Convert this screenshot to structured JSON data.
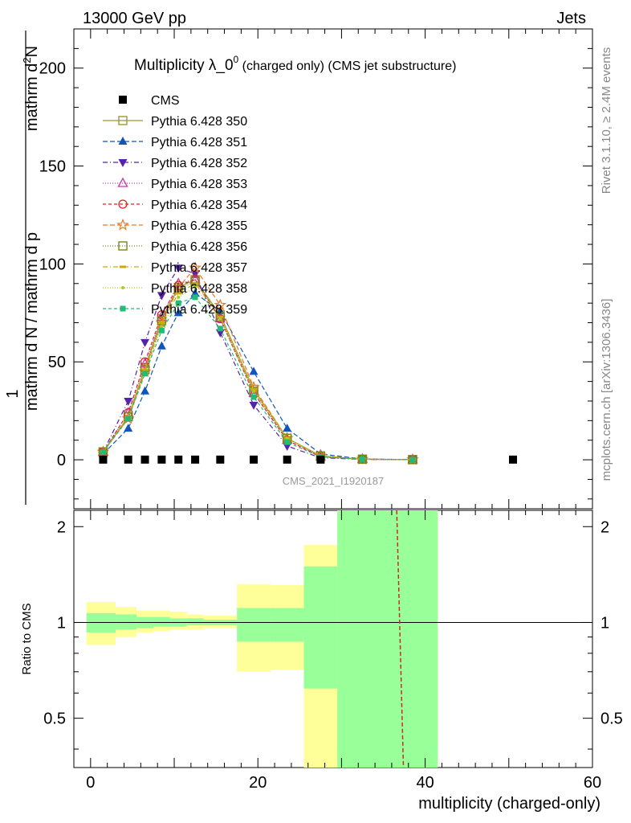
{
  "header": {
    "left": "13000 GeV pp",
    "right": "Jets",
    "side_rivet": "Rivet 3.1.10, ≥ 2.4M events",
    "side_site": "mcplots.cern.ch [arXiv:1306.3436]",
    "watermark": "CMS_2021_I1920187"
  },
  "main": {
    "title_main": "Multiplicity λ_0",
    "title_sup": "0",
    "title_tail": " (charged only) (CMS jet substructure)",
    "ylabel_one": "1",
    "ylabel_den": "mathrm d N / mathrm d p",
    "ylabel_num": "mathrm d",
    "ylabel_num_sup": "2",
    "ylabel_num_tail": "N"
  },
  "ratio": {
    "ylabel": "Ratio to CMS",
    "xlabel": "multiplicity (charged-only)"
  },
  "chart_data": {
    "type": "line",
    "xlim": [
      -2,
      60
    ],
    "ylim": [
      -25,
      220
    ],
    "ratio_ylim": [
      0.35,
      2.25
    ],
    "x_ticks": [
      0,
      20,
      40,
      60
    ],
    "y_ticks": [
      0,
      50,
      100,
      150,
      200
    ],
    "ratio_ticks": [
      0.5,
      1,
      2
    ],
    "x_tick_labels": [
      "0",
      "20",
      "40",
      "60"
    ],
    "y_tick_labels": [
      "0",
      "50",
      "100",
      "150",
      "200"
    ],
    "ratio_tick_labels": [
      "0.5",
      "1",
      "2"
    ],
    "cms": {
      "name": "CMS",
      "x": [
        1.5,
        4.5,
        6.5,
        8.5,
        10.5,
        12.5,
        15.5,
        19.5,
        23.5,
        27.5,
        50.5
      ],
      "y": [
        0.1,
        0.1,
        0.1,
        0.1,
        0.1,
        0.1,
        0.1,
        0.1,
        0.1,
        0.1,
        0.1
      ]
    },
    "x": [
      1.5,
      4.5,
      6.5,
      8.5,
      10.5,
      12.5,
      15.5,
      19.5,
      23.5,
      27.5,
      32.5,
      38.5
    ],
    "series": [
      {
        "name": "Pythia 6.428 350",
        "color": "#999933",
        "dash": "",
        "marker": "square-open",
        "values": [
          4,
          22,
          47,
          72,
          88,
          92,
          74,
          36,
          11,
          2,
          0.3,
          0.1
        ]
      },
      {
        "name": "Pythia 6.428 351",
        "color": "#1155bb",
        "dash": "6,3",
        "marker": "triangle-up",
        "values": [
          3,
          16,
          35,
          58,
          75,
          85,
          76,
          45,
          16,
          3,
          0.4,
          0.1
        ]
      },
      {
        "name": "Pythia 6.428 352",
        "color": "#5522aa",
        "dash": "6,3,1,3",
        "marker": "triangle-down",
        "values": [
          4,
          30,
          60,
          84,
          98,
          95,
          65,
          28,
          7,
          1,
          0.2,
          0.1
        ]
      },
      {
        "name": "Pythia 6.428 353",
        "color": "#cc33aa",
        "dash": "1,2",
        "marker": "triangle-open",
        "values": [
          4,
          24,
          49,
          73,
          90,
          92,
          72,
          34,
          10,
          1.5,
          0.3,
          0.1
        ]
      },
      {
        "name": "Pythia 6.428 354",
        "color": "#dd2222",
        "dash": "4,3",
        "marker": "circle-open",
        "values": [
          4,
          24,
          50,
          74,
          89,
          92,
          72,
          34,
          10,
          1.5,
          0.3,
          0.1
        ]
      },
      {
        "name": "Pythia 6.428 355",
        "color": "#ee7722",
        "dash": "6,3",
        "marker": "star-open",
        "values": [
          4,
          21,
          45,
          70,
          88,
          98,
          79,
          37,
          11,
          2,
          0.3,
          0.1
        ]
      },
      {
        "name": "Pythia 6.428 356",
        "color": "#778811",
        "dash": "1,2",
        "marker": "square-open",
        "values": [
          4,
          22,
          46,
          71,
          87,
          91,
          73,
          35,
          11,
          1.8,
          0.3,
          0.1
        ]
      },
      {
        "name": "Pythia 6.428 357",
        "color": "#ccaa11",
        "dash": "6,3,1,3",
        "marker": "dash",
        "values": [
          4,
          22,
          46,
          70,
          85,
          90,
          73,
          36,
          11,
          2,
          0.3,
          0.1
        ]
      },
      {
        "name": "Pythia 6.428 358",
        "color": "#aacc22",
        "dash": "1,2",
        "marker": "dot",
        "values": [
          4,
          21,
          44,
          68,
          83,
          88,
          72,
          35,
          11,
          2,
          0.3,
          0.1
        ]
      },
      {
        "name": "Pythia 6.428 359",
        "color": "#22bb77",
        "dash": "4,3",
        "marker": "square-filled",
        "values": [
          4,
          21,
          44,
          66,
          80,
          83,
          67,
          32,
          9,
          1.5,
          0.3,
          0.1
        ]
      }
    ],
    "ratio_band_inner": [
      {
        "x0": -0.5,
        "x1": 3.0,
        "lo": 0.93,
        "hi": 1.07
      },
      {
        "x0": 3.0,
        "x1": 5.5,
        "lo": 0.95,
        "hi": 1.06
      },
      {
        "x0": 5.5,
        "x1": 7.5,
        "lo": 0.96,
        "hi": 1.04
      },
      {
        "x0": 7.5,
        "x1": 9.5,
        "lo": 0.97,
        "hi": 1.04
      },
      {
        "x0": 9.5,
        "x1": 11.5,
        "lo": 0.97,
        "hi": 1.03
      },
      {
        "x0": 11.5,
        "x1": 13.5,
        "lo": 0.98,
        "hi": 1.03
      },
      {
        "x0": 13.5,
        "x1": 17.5,
        "lo": 0.98,
        "hi": 1.02
      },
      {
        "x0": 17.5,
        "x1": 21.5,
        "lo": 0.87,
        "hi": 1.11
      },
      {
        "x0": 21.5,
        "x1": 25.5,
        "lo": 0.87,
        "hi": 1.11
      },
      {
        "x0": 25.5,
        "x1": 29.5,
        "lo": 0.62,
        "hi": 1.5
      },
      {
        "x0": 29.5,
        "x1": 41.5,
        "lo": 0.35,
        "hi": 2.25
      }
    ],
    "ratio_band_outer": [
      {
        "x0": -0.5,
        "x1": 3.0,
        "lo": 0.85,
        "hi": 1.16
      },
      {
        "x0": 3.0,
        "x1": 5.5,
        "lo": 0.9,
        "hi": 1.12
      },
      {
        "x0": 5.5,
        "x1": 7.5,
        "lo": 0.93,
        "hi": 1.09
      },
      {
        "x0": 7.5,
        "x1": 9.5,
        "lo": 0.94,
        "hi": 1.09
      },
      {
        "x0": 9.5,
        "x1": 11.5,
        "lo": 0.95,
        "hi": 1.08
      },
      {
        "x0": 11.5,
        "x1": 13.5,
        "lo": 0.95,
        "hi": 1.06
      },
      {
        "x0": 13.5,
        "x1": 17.5,
        "lo": 0.96,
        "hi": 1.05
      },
      {
        "x0": 17.5,
        "x1": 21.5,
        "lo": 0.7,
        "hi": 1.32
      },
      {
        "x0": 21.5,
        "x1": 25.5,
        "lo": 0.71,
        "hi": 1.31
      },
      {
        "x0": 25.5,
        "x1": 29.5,
        "lo": 0.35,
        "hi": 1.75
      },
      {
        "x0": 29.5,
        "x1": 41.5,
        "lo": 0.35,
        "hi": 2.25
      }
    ],
    "ratio_line": {
      "x": [
        36.6,
        37.4
      ],
      "y_from": 2.25,
      "y_to": 0.35,
      "color": "#dd2222"
    },
    "grid": false,
    "legend_position": "top-left"
  }
}
